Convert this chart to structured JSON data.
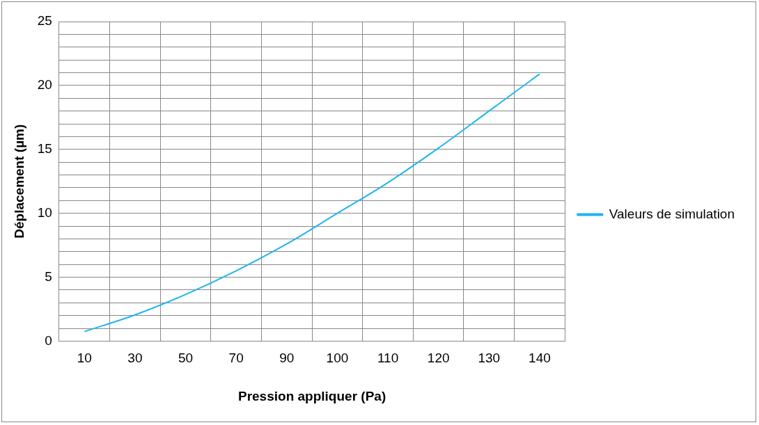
{
  "chart_data": {
    "type": "line",
    "xlabel": "Pression appliquer (Pa)",
    "ylabel": "Déplacement (µm)",
    "categories": [
      "10",
      "30",
      "50",
      "70",
      "90",
      "100",
      "110",
      "120",
      "130",
      "140"
    ],
    "series": [
      {
        "name": "Valeurs de simulation",
        "color": "#1eb4f0",
        "values": [
          0.75,
          2.05,
          3.65,
          5.5,
          7.6,
          10.0,
          12.4,
          15.1,
          18.0,
          20.9
        ]
      }
    ],
    "ylim": [
      0,
      25
    ],
    "yticks": [
      0,
      {
        "value": 1,
        "label": null
      },
      {
        "value": 2,
        "label": null
      },
      {
        "value": 3,
        "label": null
      },
      {
        "value": 4,
        "label": null
      },
      5,
      {
        "value": 6,
        "label": null
      },
      {
        "value": 7,
        "label": null
      },
      {
        "value": 8,
        "label": null
      },
      {
        "value": 9,
        "label": null
      },
      10,
      {
        "value": 11,
        "label": null
      },
      {
        "value": 12,
        "label": null
      },
      {
        "value": 13,
        "label": null
      },
      {
        "value": 14,
        "label": null
      },
      15,
      {
        "value": 16,
        "label": null
      },
      {
        "value": 17,
        "label": null
      },
      {
        "value": 18,
        "label": null
      },
      {
        "value": 19,
        "label": null
      },
      20,
      {
        "value": 21,
        "label": null
      },
      {
        "value": 22,
        "label": null
      },
      {
        "value": 23,
        "label": null
      },
      {
        "value": 24,
        "label": null
      },
      25
    ],
    "grid": true,
    "legend": "right",
    "marker": "none",
    "line_style": "solid"
  }
}
